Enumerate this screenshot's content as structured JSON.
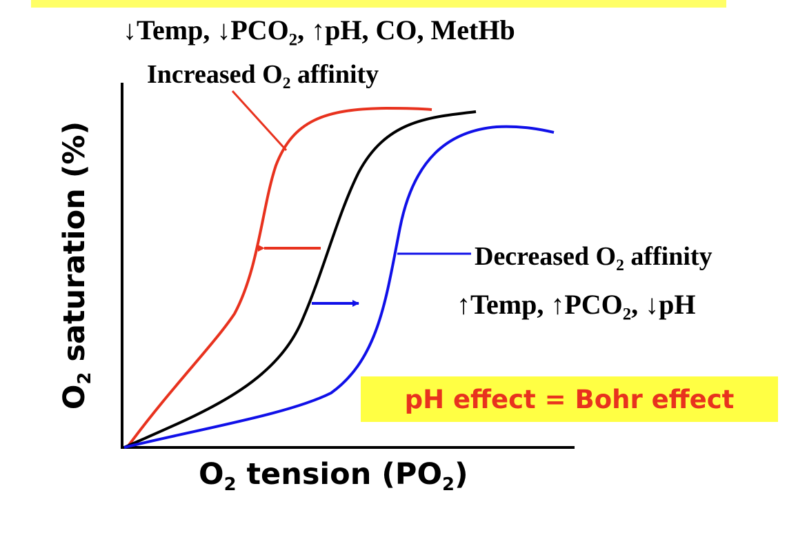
{
  "title_strip_color": "#ffff66",
  "top_factors": {
    "down1": "↓",
    "temp": "Temp, ",
    "down2": "↓",
    "pco": "PCO",
    "pco_sub": "2",
    "after_pco": ", ",
    "up": "↑",
    "rest": "pH, CO, MetHb"
  },
  "increased_label": {
    "pre": "Increased O",
    "sub": "2",
    "post": " affinity"
  },
  "decreased_label": {
    "pre": "Decreased O",
    "sub": "2",
    "post": " affinity"
  },
  "decreased_factors": {
    "up1": "↑",
    "temp": "Temp, ",
    "up2": "↑",
    "pco": "PCO",
    "pco_sub": "2",
    "after_pco": ", ",
    "down": "↓",
    "rest": "pH"
  },
  "axes": {
    "y_pre": "O",
    "y_sub": "2",
    "y_post": " saturation (%)",
    "x_pre": "O",
    "x_sub": "2",
    "x_mid": " tension (PO",
    "x_sub2": "2",
    "x_post": ")"
  },
  "bohr_note": "pH effect = Bohr effect",
  "colors": {
    "left_shift": "#e8321e",
    "normal": "#000000",
    "right_shift": "#1010e8",
    "highlight": "#ffff44"
  }
}
